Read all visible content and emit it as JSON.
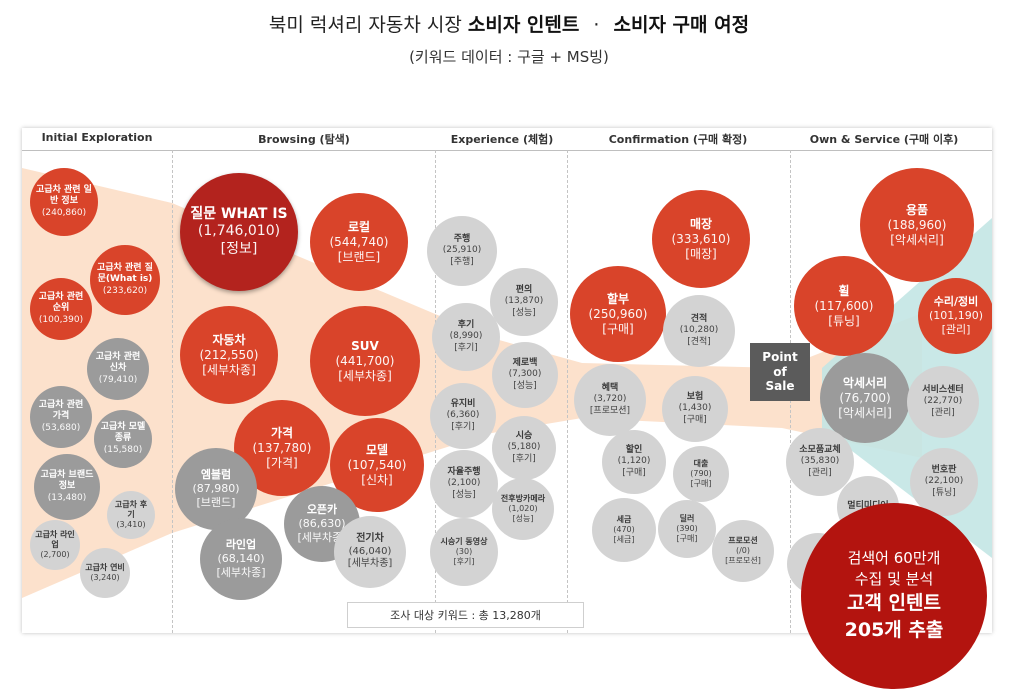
{
  "header": {
    "title_prefix": "북미 럭셔리 자동차 시장",
    "title_bold_1": "소비자 인텐트",
    "title_sep": "·",
    "title_bold_2": "소비자 구매 여정",
    "subtitle": "(키워드 데이터 : 구글 + MS빙)"
  },
  "stages": [
    {
      "label": "Initial Exploration"
    },
    {
      "label": "Browsing (탐색)"
    },
    {
      "label": "Experience (체험)"
    },
    {
      "label": "Confirmation (구매 확정)"
    },
    {
      "label": "Own & Service (구매 이후)"
    }
  ],
  "colors": {
    "red": "#d9442a",
    "dark_red": "#b3231e",
    "gray": "#d3d3d3",
    "mid_gray": "#9b9b9b",
    "callout": "#b3140f",
    "band_orange": "#fbdcc3",
    "band_teal": "#c3e6e4"
  },
  "bubbles": [
    {
      "name": "고급차 관련 일반 정보",
      "value": "(240,860)"
    },
    {
      "name": "고급차 관련 질문(What is)",
      "value": "(233,620)"
    },
    {
      "name": "고급차 관련 순위",
      "value": "(100,390)"
    },
    {
      "name": "고급차 관련 신차",
      "value": "(79,410)"
    },
    {
      "name": "고급차 관련 가격",
      "value": "(53,680)"
    },
    {
      "name": "고급차 모델 종류",
      "value": "(15,580)"
    },
    {
      "name": "고급차 브랜드 정보",
      "value": "(13,480)"
    },
    {
      "name": "고급차 후기",
      "value": "(3,410)"
    },
    {
      "name": "고급차 라인업",
      "value": "(2,700)"
    },
    {
      "name": "고급차 연비",
      "value": "(3,240)"
    },
    {
      "name": "질문 WHAT IS",
      "value": "(1,746,010)",
      "tag": "[정보]"
    },
    {
      "name": "로컬",
      "value": "(544,740)",
      "tag": "[브랜드]"
    },
    {
      "name": "자동차",
      "value": "(212,550)",
      "tag": "[세부차종]"
    },
    {
      "name": "SUV",
      "value": "(441,700)",
      "tag": "[세부차종]"
    },
    {
      "name": "가격",
      "value": "(137,780)",
      "tag": "[가격]"
    },
    {
      "name": "모델",
      "value": "(107,540)",
      "tag": "[신차]"
    },
    {
      "name": "엠블럼",
      "value": "(87,980)",
      "tag": "[브랜드]"
    },
    {
      "name": "오픈카",
      "value": "(86,630)",
      "tag": "[세부차종]"
    },
    {
      "name": "라인업",
      "value": "(68,140)",
      "tag": "[세부차종]"
    },
    {
      "name": "전기차",
      "value": "(46,040)",
      "tag": "[세부차종]"
    },
    {
      "name": "주행",
      "value": "(25,910)",
      "tag": "[주행]"
    },
    {
      "name": "편의",
      "value": "(13,870)",
      "tag": "[성능]"
    },
    {
      "name": "후기",
      "value": "(8,990)",
      "tag": "[후기]"
    },
    {
      "name": "제로백",
      "value": "(7,300)",
      "tag": "[성능]"
    },
    {
      "name": "유지비",
      "value": "(6,360)",
      "tag": "[후기]"
    },
    {
      "name": "시승",
      "value": "(5,180)",
      "tag": "[후기]"
    },
    {
      "name": "자율주행",
      "value": "(2,100)",
      "tag": "[성능]"
    },
    {
      "name": "전후방카메라",
      "value": "(1,020)",
      "tag": "[성능]"
    },
    {
      "name": "시승기 동영상",
      "value": "(30)",
      "tag": "[후기]"
    },
    {
      "name": "매장",
      "value": "(333,610)",
      "tag": "[매장]"
    },
    {
      "name": "할부",
      "value": "(250,960)",
      "tag": "[구매]"
    },
    {
      "name": "견적",
      "value": "(10,280)",
      "tag": "[견적]"
    },
    {
      "name": "혜택",
      "value": "(3,720)",
      "tag": "[프로모션]"
    },
    {
      "name": "보험",
      "value": "(1,430)",
      "tag": "[구매]"
    },
    {
      "name": "할인",
      "value": "(1,120)",
      "tag": "[구매]"
    },
    {
      "name": "대출",
      "value": "(790)",
      "tag": "[구매]"
    },
    {
      "name": "세금",
      "value": "(470)",
      "tag": "[세금]"
    },
    {
      "name": "딜러",
      "value": "(390)",
      "tag": "[구매]"
    },
    {
      "name": "프로모션",
      "value": "(/0)",
      "tag": "[프로모션]"
    },
    {
      "name": "용품",
      "value": "(188,960)",
      "tag": "[악세서리]"
    },
    {
      "name": "휠",
      "value": "(117,600)",
      "tag": "[튜닝]"
    },
    {
      "name": "수리/정비",
      "value": "(101,190)",
      "tag": "[관리]"
    },
    {
      "name": "악세서리",
      "value": "(76,700)",
      "tag": "[악세서리]"
    },
    {
      "name": "서비스센터",
      "value": "(22,770)",
      "tag": "[관리]"
    },
    {
      "name": "소모품교체",
      "value": "(35,830)",
      "tag": "[관리]"
    },
    {
      "name": "번호판",
      "value": "(22,100)",
      "tag": "[튜닝]"
    },
    {
      "name": "멀티미디어",
      "value": ""
    },
    {
      "name": "",
      "value": ""
    }
  ],
  "point_of_sale": {
    "l1": "Point",
    "l2": "of",
    "l3": "Sale"
  },
  "survey_note": "조사 대상 키워드 : 총 13,280개",
  "callout": {
    "l1": "검색어 60만개",
    "l2": "수집 및 분석",
    "l3": "고객 인텐트",
    "l4": "205개 추출"
  }
}
